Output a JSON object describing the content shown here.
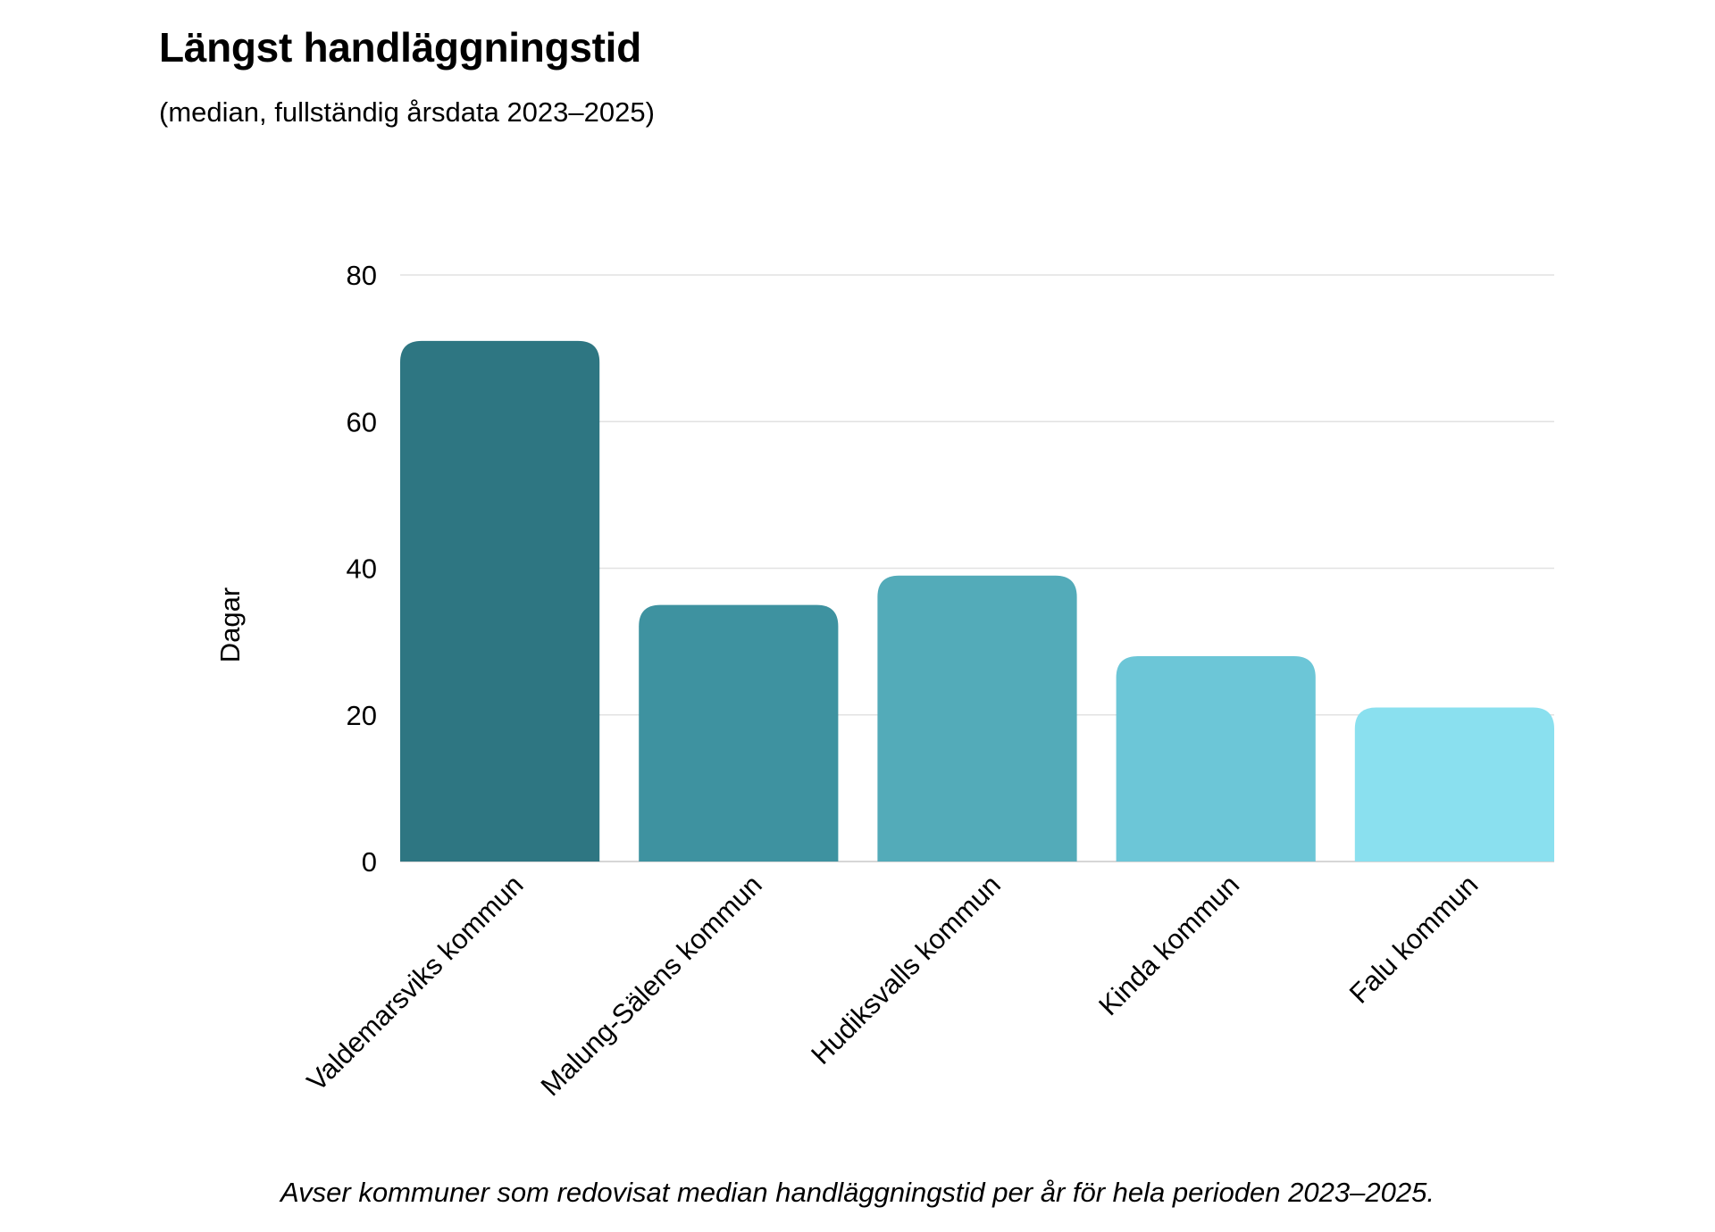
{
  "title": "Längst handläggningstid",
  "subtitle": "(median, fullständig årsdata 2023–2025)",
  "footnote": "Avser kommuner som redovisat median handläggningstid per år för hela perioden 2023–2025.",
  "colors": {
    "bars": [
      "#2e7682",
      "#3e92a0",
      "#53abb9",
      "#6cc6d7",
      "#8ae0ef"
    ],
    "grid": "#e2e2e2",
    "axis": "#c8c8c8",
    "text": "#000000"
  },
  "chart_data": {
    "type": "bar",
    "categories": [
      "Valdemarsviks kommun",
      "Malung-Sälens kommun",
      "Hudiksvalls kommun",
      "Kinda kommun",
      "Falu kommun"
    ],
    "values": [
      71,
      35,
      39,
      28,
      21
    ],
    "title": "Längst handläggningstid",
    "subtitle": "(median, fullständig årsdata 2023–2025)",
    "xlabel": "",
    "ylabel": "Dagar",
    "ylim": [
      0,
      80
    ],
    "yticks": [
      0,
      20,
      40,
      60,
      80
    ],
    "grid": true,
    "legend": "none"
  }
}
